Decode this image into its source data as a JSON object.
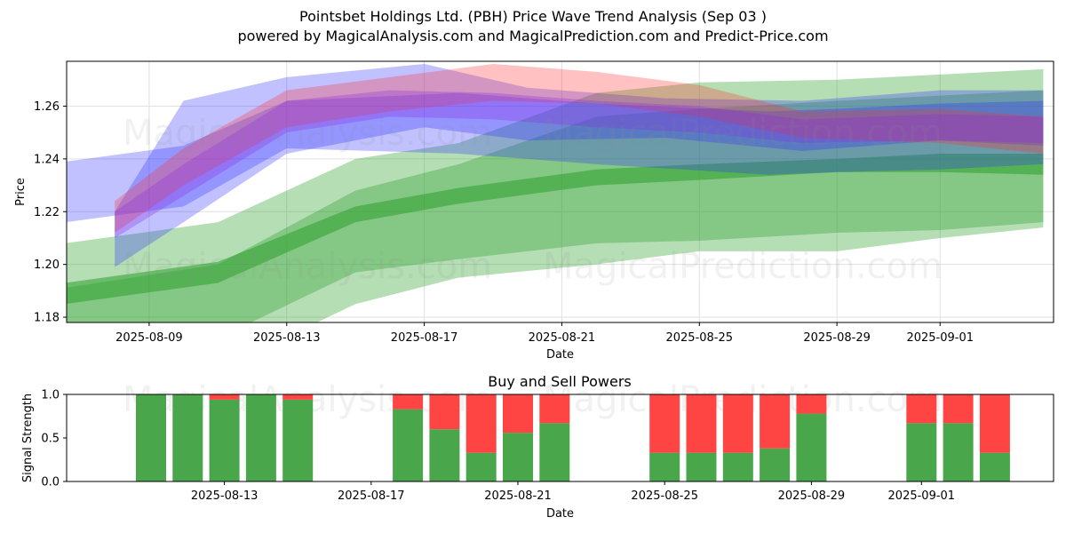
{
  "header": {
    "title": "Pointsbet Holdings Ltd. (PBH) Price Wave Trend Analysis (Sep 03 )",
    "subtitle": "powered by MagicalAnalysis.com and MagicalPrediction.com and Predict-Price.com"
  },
  "watermarks": [
    "MagicalAnalysis.com",
    "MagicalPrediction.com"
  ],
  "colors": {
    "green_band": "#2ca02c",
    "blue_band": "#3333ff",
    "red_band": "#ff3333",
    "buy": "#4aa64a",
    "sell": "#ff4444"
  },
  "chart_data": [
    {
      "type": "area",
      "title": "",
      "xlabel": "Date",
      "ylabel": "Price",
      "xlim": [
        "2025-08-06",
        "2025-09-04"
      ],
      "ylim": [
        1.178,
        1.277
      ],
      "x_ticks": [
        "2025-08-09",
        "2025-08-13",
        "2025-08-17",
        "2025-08-21",
        "2025-08-25",
        "2025-08-29",
        "2025-09-01"
      ],
      "y_ticks": [
        "1.18",
        "1.20",
        "1.22",
        "1.24",
        "1.26"
      ],
      "grid": true,
      "series": [
        {
          "color": "green",
          "style": "band",
          "x": [
            "2025-08-06",
            "2025-08-11",
            "2025-08-15",
            "2025-08-18",
            "2025-08-22",
            "2025-08-25",
            "2025-08-29",
            "2025-09-01",
            "2025-09-04"
          ],
          "lower": [
            1.165,
            1.172,
            1.197,
            1.202,
            1.208,
            1.209,
            1.212,
            1.213,
            1.216
          ],
          "upper": [
            1.207,
            1.216,
            1.24,
            1.246,
            1.265,
            1.269,
            1.27,
            1.272,
            1.274
          ]
        },
        {
          "color": "green",
          "style": "band",
          "x": [
            "2025-08-06",
            "2025-08-11",
            "2025-08-15",
            "2025-08-18",
            "2025-08-22",
            "2025-08-25",
            "2025-08-29",
            "2025-09-01",
            "2025-09-04"
          ],
          "lower": [
            1.16,
            1.16,
            1.185,
            1.195,
            1.2,
            1.205,
            1.205,
            1.21,
            1.214
          ],
          "upper": [
            1.19,
            1.2,
            1.228,
            1.238,
            1.256,
            1.259,
            1.262,
            1.264,
            1.266
          ]
        },
        {
          "color": "green",
          "style": "band",
          "x": [
            "2025-08-06",
            "2025-08-11",
            "2025-08-15",
            "2025-08-18",
            "2025-08-22",
            "2025-08-25",
            "2025-08-29",
            "2025-09-01",
            "2025-09-04"
          ],
          "lower": [
            1.184,
            1.193,
            1.216,
            1.223,
            1.23,
            1.232,
            1.235,
            1.235,
            1.234
          ],
          "upper": [
            1.192,
            1.201,
            1.222,
            1.229,
            1.236,
            1.238,
            1.24,
            1.242,
            1.242
          ]
        },
        {
          "color": "blue",
          "style": "band",
          "x": [
            "2025-08-06",
            "2025-08-10",
            "2025-08-13",
            "2025-08-18",
            "2025-08-22",
            "2025-08-27",
            "2025-08-29",
            "2025-09-01",
            "2025-09-04"
          ],
          "lower": [
            1.215,
            1.222,
            1.244,
            1.242,
            1.238,
            1.234,
            1.235,
            1.236,
            1.238
          ],
          "upper": [
            1.238,
            1.245,
            1.262,
            1.265,
            1.261,
            1.258,
            1.259,
            1.261,
            1.262
          ]
        },
        {
          "color": "blue",
          "style": "band",
          "x": [
            "2025-08-08",
            "2025-08-10",
            "2025-08-13",
            "2025-08-17",
            "2025-08-20",
            "2025-08-24",
            "2025-08-28",
            "2025-09-01",
            "2025-09-04"
          ],
          "lower": [
            1.199,
            1.216,
            1.242,
            1.252,
            1.247,
            1.248,
            1.243,
            1.247,
            1.245
          ],
          "upper": [
            1.22,
            1.262,
            1.271,
            1.276,
            1.267,
            1.263,
            1.262,
            1.266,
            1.266
          ]
        },
        {
          "color": "red",
          "style": "band",
          "x": [
            "2025-08-08",
            "2025-08-10",
            "2025-08-13",
            "2025-08-16",
            "2025-08-19",
            "2025-08-22",
            "2025-08-25",
            "2025-08-28",
            "2025-09-01",
            "2025-09-04"
          ],
          "lower": [
            1.212,
            1.23,
            1.252,
            1.258,
            1.262,
            1.261,
            1.256,
            1.248,
            1.246,
            1.242
          ],
          "upper": [
            1.224,
            1.244,
            1.266,
            1.271,
            1.276,
            1.273,
            1.268,
            1.258,
            1.259,
            1.256
          ]
        },
        {
          "color": "purple",
          "style": "band",
          "x": [
            "2025-08-08",
            "2025-08-10",
            "2025-08-13",
            "2025-08-16",
            "2025-08-19",
            "2025-08-22",
            "2025-08-25",
            "2025-08-28",
            "2025-09-01",
            "2025-09-04"
          ],
          "lower": [
            1.21,
            1.226,
            1.25,
            1.256,
            1.255,
            1.252,
            1.25,
            1.246,
            1.247,
            1.246
          ],
          "upper": [
            1.22,
            1.238,
            1.262,
            1.266,
            1.265,
            1.262,
            1.26,
            1.255,
            1.257,
            1.256
          ]
        }
      ]
    },
    {
      "type": "bar",
      "title": "Buy and Sell Powers",
      "xlabel": "Date",
      "ylabel": "Signal Strength",
      "xlim": [
        "2025-08-09",
        "2025-09-04"
      ],
      "ylim": [
        0,
        1.0
      ],
      "x_ticks": [
        "2025-08-13",
        "2025-08-17",
        "2025-08-21",
        "2025-08-25",
        "2025-08-29",
        "2025-09-01"
      ],
      "y_ticks": [
        "0.0",
        "0.5",
        "1.0"
      ],
      "categories": [
        "2025-08-11",
        "2025-08-12",
        "2025-08-13",
        "2025-08-14",
        "2025-08-15",
        "2025-08-18",
        "2025-08-19",
        "2025-08-20",
        "2025-08-21",
        "2025-08-22",
        "2025-08-25",
        "2025-08-26",
        "2025-08-27",
        "2025-08-28",
        "2025-08-29",
        "2025-09-01",
        "2025-09-02",
        "2025-09-03"
      ],
      "series": [
        {
          "color": "green",
          "values": [
            1.0,
            1.0,
            0.94,
            1.0,
            0.94,
            0.83,
            0.6,
            0.33,
            0.56,
            0.67,
            0.33,
            0.33,
            0.33,
            0.38,
            0.78,
            0.67,
            0.67,
            0.33
          ]
        },
        {
          "color": "red",
          "values": [
            0.0,
            0.0,
            0.06,
            0.0,
            0.06,
            0.17,
            0.4,
            0.67,
            0.44,
            0.33,
            0.67,
            0.67,
            0.67,
            0.62,
            0.22,
            0.33,
            0.33,
            0.67
          ]
        }
      ]
    }
  ]
}
